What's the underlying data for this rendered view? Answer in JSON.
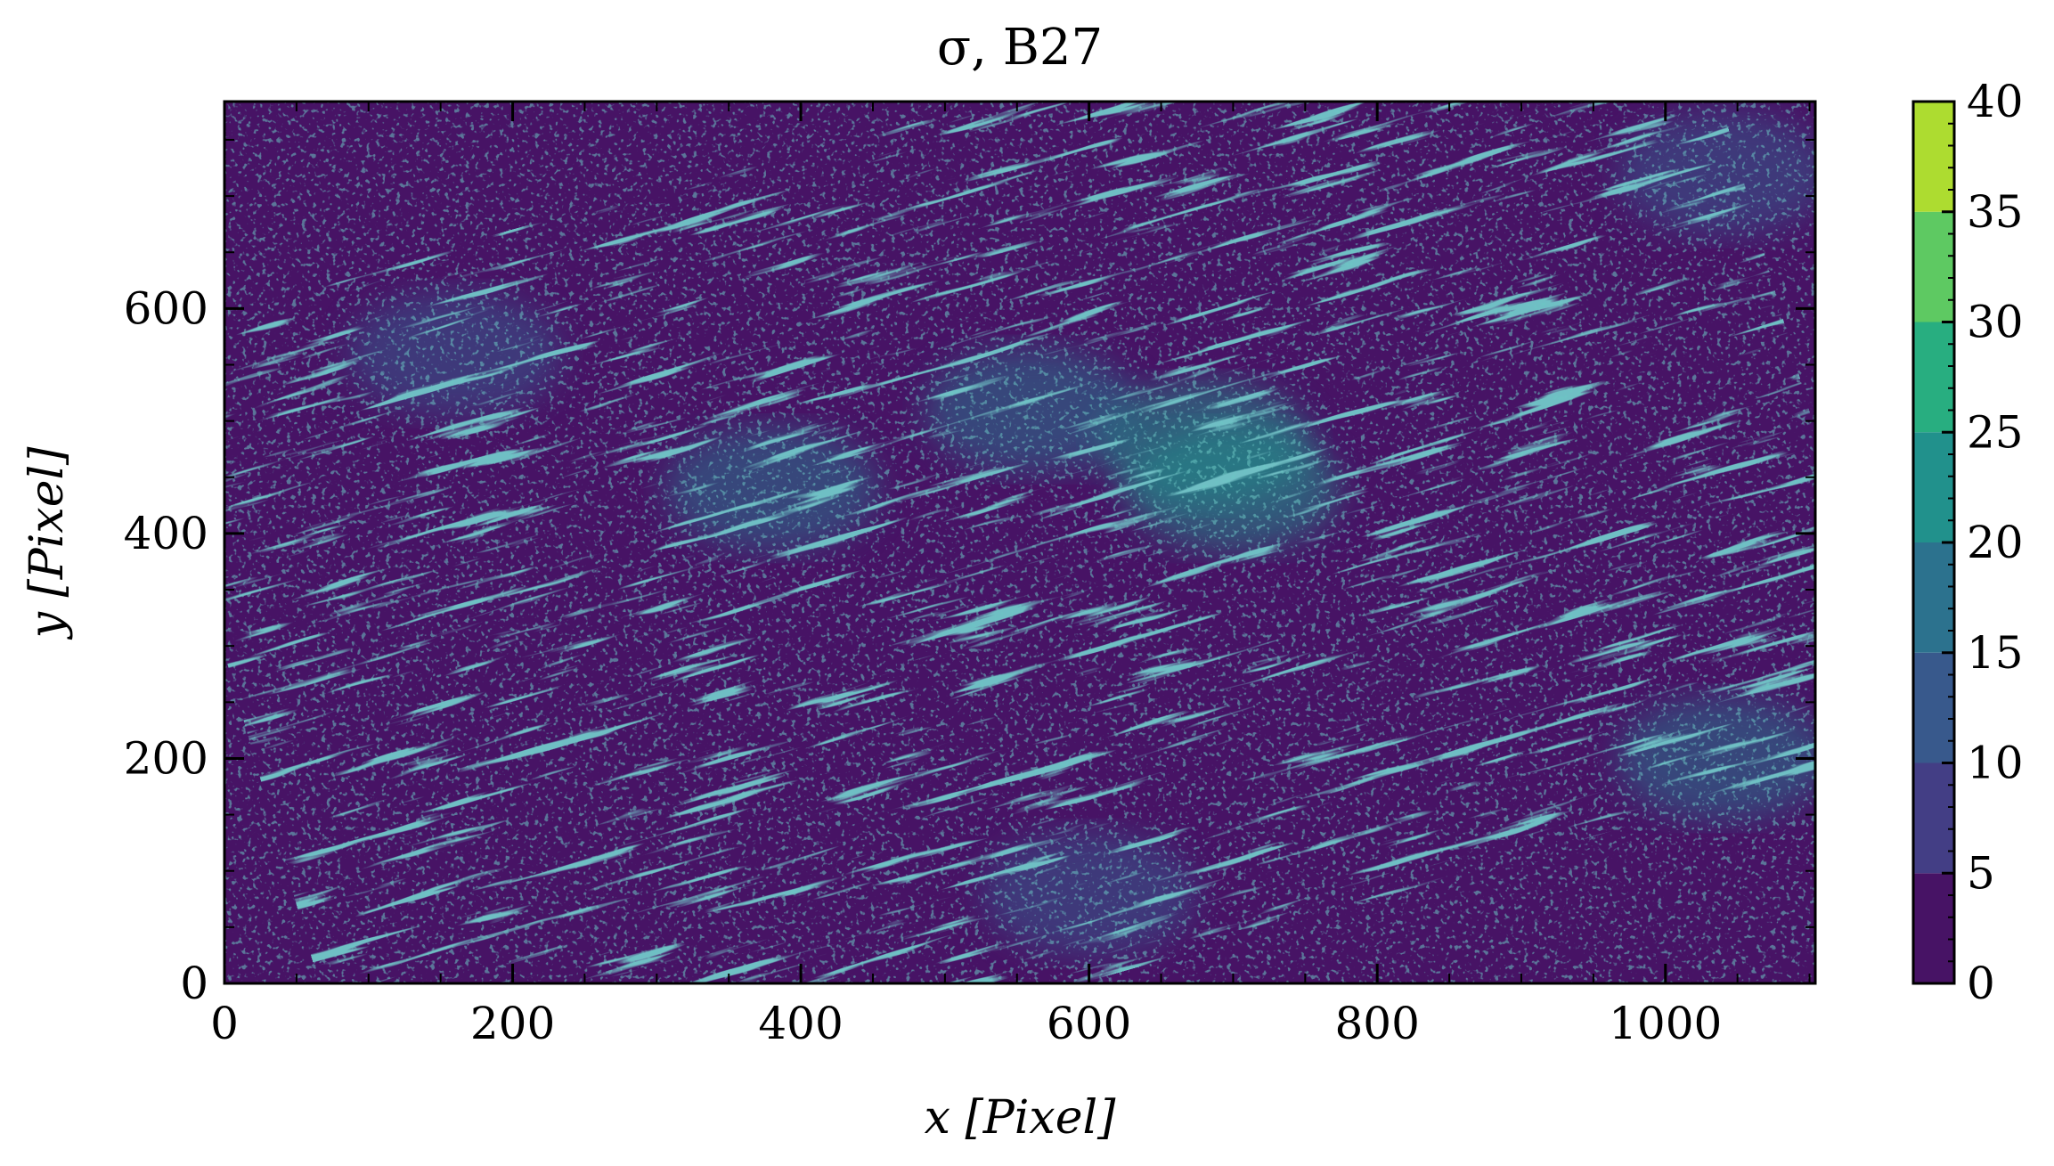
{
  "chart_data": {
    "type": "heatmap",
    "title": "σ, B27",
    "xlabel": "x [Pixel]",
    "ylabel": "y [Pixel]",
    "xlim": [
      0,
      1104
    ],
    "ylim": [
      0,
      784
    ],
    "xticks": [
      0,
      200,
      400,
      600,
      800,
      1000
    ],
    "yticks": [
      0,
      200,
      400,
      600
    ],
    "colorbar": {
      "ticks": [
        0,
        5,
        10,
        15,
        20,
        25,
        30,
        35,
        40
      ],
      "levels": [
        0,
        5,
        10,
        15,
        20,
        25,
        30,
        35,
        40
      ],
      "colors": [
        "#471365",
        "#433e85",
        "#38598c",
        "#2c728e",
        "#21918c",
        "#28ae80",
        "#5ec962",
        "#addc30",
        "#dde318"
      ]
    },
    "colormap": "viridis",
    "grid": false,
    "regions": [
      {
        "x": 560,
        "y": 510,
        "level": 15
      },
      {
        "x": 680,
        "y": 480,
        "level": 20
      },
      {
        "x": 380,
        "y": 440,
        "level": 15
      },
      {
        "x": 1040,
        "y": 200,
        "level": 15
      },
      {
        "x": 1040,
        "y": 720,
        "level": 10
      },
      {
        "x": 160,
        "y": 560,
        "level": 10
      },
      {
        "x": 600,
        "y": 80,
        "level": 10
      },
      {
        "x": 700,
        "y": 440,
        "level": 20
      }
    ]
  }
}
